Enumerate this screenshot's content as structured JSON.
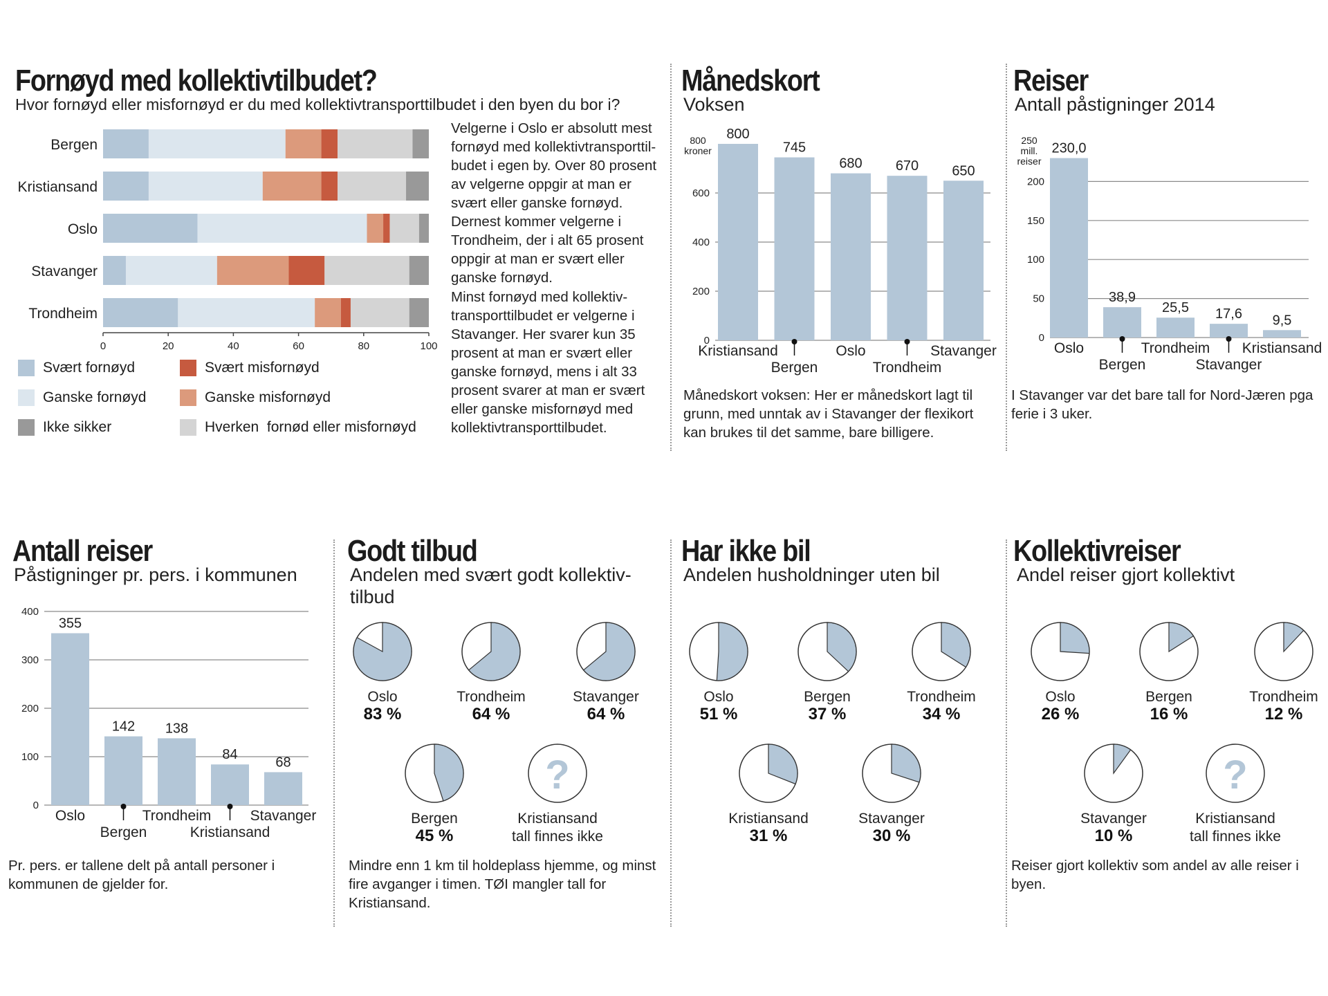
{
  "colors": {
    "svaert_fornoyd": "#b3c6d7",
    "ganske_fornoyd": "#dce6ee",
    "ganske_misfornoyd": "#dc9a7c",
    "svaert_misfornoyd": "#c65a3f",
    "hverken": "#d4d4d4",
    "ikke_sikker": "#999999",
    "bar": "#b3c6d7",
    "pie": "#b3c6d7"
  },
  "satisfaction": {
    "title": "Fornøyd med kollektivtilbudet?",
    "subtitle": "Hvor fornøyd eller misfornøyd er du med kollektivtransporttilbudet i den byen du bor i?",
    "text1": "Velgerne i Oslo er absolutt mest fornøyd med kollektivtransporttil-budet i egen by. Over 80 prosent av velgerne oppgir at man er svært eller ganske fornøyd. Dernest kommer velgerne i Trondheim, der i alt 65 prosent oppgir at man er svært eller ganske fornøyd.",
    "text2": "Minst fornøyd med kollektiv-transporttilbudet er velgerne i Stavanger. Her svarer kun 35 prosent at man er svært eller ganske fornøyd, mens i alt 33 prosent svarer at man er svært eller ganske misfornøyd med kollektivtransporttilbudet.",
    "legend": {
      "svaert_fornoyd": "Svært fornøyd",
      "ganske_fornoyd": "Ganske fornøyd",
      "ikke_sikker": "Ikke sikker",
      "svaert_misfornoyd": "Svært misfornøyd",
      "ganske_misfornoyd": "Ganske misfornøyd",
      "hverken": "Hverken  fornød eller misfornøyd"
    }
  },
  "monthly": {
    "title": "Månedskort",
    "subtitle": "Voksen",
    "ytop_label": "800 kroner",
    "note": "Månedskort voksen: Her er månedskort lagt til grunn, med unntak av i Stavanger der flexikort kan brukes til det samme, bare billigere."
  },
  "trips": {
    "title": "Reiser",
    "subtitle": "Antall påstigninger 2014",
    "ytop_label": "250 mill. reiser",
    "note": "I Stavanger var det bare tall for Nord-Jæren pga ferie i 3 uker."
  },
  "perperson": {
    "title": "Antall reiser",
    "subtitle": "Påstigninger pr. pers. i kommunen",
    "note": "Pr. pers. er tallene delt på antall personer i kommunen de gjelder for."
  },
  "good": {
    "title": "Godt tilbud",
    "subtitle_line1": "Andelen med svært godt kollektiv-",
    "subtitle_line2": "tilbud",
    "missing_name": "Kristiansand",
    "missing_text": "tall finnes ikke",
    "note": "Mindre enn 1 km til holdeplass hjemme, og minst fire avganger i timen. TØI mangler tall for Kristiansand."
  },
  "nocar": {
    "title": "Har ikke bil",
    "subtitle": "Andelen husholdninger uten bil"
  },
  "transit": {
    "title": "Kollektivreiser",
    "subtitle": "Andel reiser gjort kollektivt",
    "missing_name": "Kristiansand",
    "missing_text": "tall finnes ikke",
    "note": "Reiser gjort kollektiv som andel av alle reiser i byen."
  },
  "chart_data": [
    {
      "type": "bar",
      "stacked": true,
      "orientation": "horizontal",
      "title": "Fornøyd med kollektivtilbudet?",
      "categories": [
        "Bergen",
        "Kristiansand",
        "Oslo",
        "Stavanger",
        "Trondheim"
      ],
      "xlim": [
        0,
        100
      ],
      "xticks": [
        0,
        20,
        40,
        60,
        80,
        100
      ],
      "series": [
        {
          "name": "Svært fornøyd",
          "values": [
            14,
            14,
            29,
            7,
            23
          ]
        },
        {
          "name": "Ganske fornøyd",
          "values": [
            42,
            35,
            52,
            28,
            42
          ]
        },
        {
          "name": "Ganske misfornøyd",
          "values": [
            11,
            18,
            5,
            22,
            8
          ]
        },
        {
          "name": "Svært misfornøyd",
          "values": [
            5,
            5,
            2,
            11,
            3
          ]
        },
        {
          "name": "Hverken  fornød eller misfornøyd",
          "values": [
            23,
            21,
            9,
            26,
            18
          ]
        },
        {
          "name": "Ikke sikker",
          "values": [
            5,
            7,
            3,
            6,
            6
          ]
        }
      ]
    },
    {
      "type": "bar",
      "title": "Månedskort",
      "categories": [
        "Kristiansand",
        "Bergen",
        "Oslo",
        "Trondheim",
        "Stavanger"
      ],
      "values": [
        800,
        745,
        680,
        670,
        650
      ],
      "value_labels": [
        "800",
        "745",
        "680",
        "670",
        "650"
      ],
      "ylim": [
        0,
        800
      ],
      "yticks": [
        0,
        200,
        400,
        600
      ]
    },
    {
      "type": "bar",
      "title": "Reiser",
      "categories": [
        "Oslo",
        "Bergen",
        "Trondheim",
        "Stavanger",
        "Kristiansand"
      ],
      "values": [
        230.0,
        38.9,
        25.5,
        17.6,
        9.5
      ],
      "value_labels": [
        "230,0",
        "38,9",
        "25,5",
        "17,6",
        "9,5"
      ],
      "ylim": [
        0,
        250
      ],
      "yticks": [
        0,
        50,
        100,
        150,
        200
      ]
    },
    {
      "type": "bar",
      "title": "Antall reiser",
      "categories": [
        "Oslo",
        "Bergen",
        "Trondheim",
        "Kristiansand",
        "Stavanger"
      ],
      "values": [
        355,
        142,
        138,
        84,
        68
      ],
      "value_labels": [
        "355",
        "142",
        "138",
        "84",
        "68"
      ],
      "ylim": [
        0,
        400
      ],
      "yticks": [
        0,
        100,
        200,
        300,
        400
      ]
    },
    {
      "type": "pie",
      "title": "Godt tilbud",
      "categories": [
        "Oslo",
        "Trondheim",
        "Stavanger",
        "Bergen"
      ],
      "values": [
        83,
        64,
        64,
        45
      ],
      "value_labels": [
        "83 %",
        "64 %",
        "64 %",
        "45 %"
      ]
    },
    {
      "type": "pie",
      "title": "Har ikke bil",
      "categories": [
        "Oslo",
        "Bergen",
        "Trondheim",
        "Kristiansand",
        "Stavanger"
      ],
      "values": [
        51,
        37,
        34,
        31,
        30
      ],
      "value_labels": [
        "51 %",
        "37 %",
        "34 %",
        "31 %",
        "30 %"
      ]
    },
    {
      "type": "pie",
      "title": "Kollektivreiser",
      "categories": [
        "Oslo",
        "Bergen",
        "Trondheim",
        "Stavanger"
      ],
      "values": [
        26,
        16,
        12,
        10
      ],
      "value_labels": [
        "26 %",
        "16 %",
        "12 %",
        "10 %"
      ]
    }
  ]
}
